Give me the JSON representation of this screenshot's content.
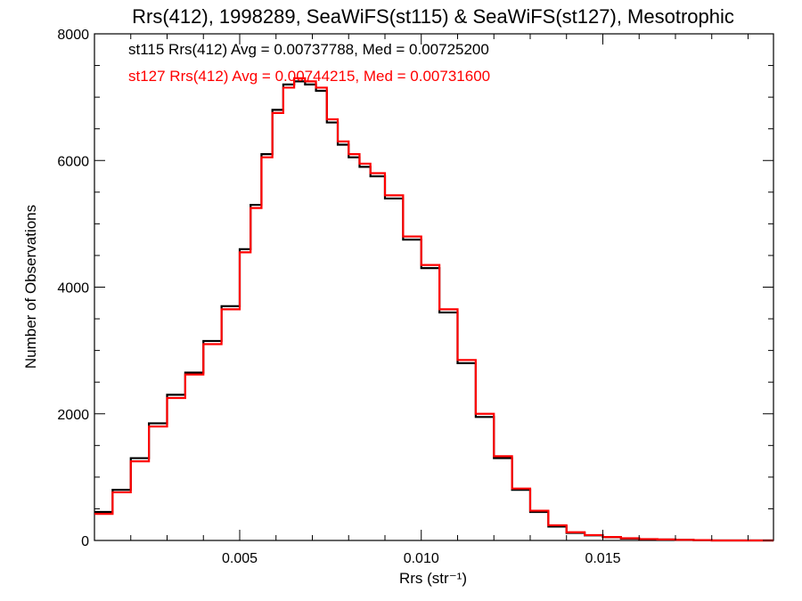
{
  "chart_data": {
    "type": "line",
    "title": "Rrs(412), 1998289, SeaWiFS(st115) & SeaWiFS(st127), Mesotrophic",
    "xlabel": "Rrs (str⁻¹)",
    "ylabel": "Number of Observations",
    "xlim": [
      0.001,
      0.0197
    ],
    "ylim": [
      0,
      8000
    ],
    "x_ticks": [
      0.005,
      0.01,
      0.015
    ],
    "x_tick_labels": [
      "0.005",
      "0.010",
      "0.015"
    ],
    "y_ticks": [
      0,
      2000,
      4000,
      6000,
      8000
    ],
    "y_tick_labels": [
      "0",
      "2000",
      "4000",
      "6000",
      "8000"
    ],
    "grid": false,
    "annotations": [
      {
        "text": "st115 Rrs(412) Avg = 0.00737788, Med = 0.00725200",
        "color": "#000000"
      },
      {
        "text": "st127 Rrs(412) Avg = 0.00744215, Med = 0.00731600",
        "color": "#ff0000"
      }
    ],
    "series": [
      {
        "name": "st115",
        "color": "#000000",
        "x": [
          0.001,
          0.0015,
          0.002,
          0.0025,
          0.003,
          0.0035,
          0.004,
          0.0045,
          0.005,
          0.0053,
          0.0056,
          0.0059,
          0.0062,
          0.0065,
          0.0068,
          0.0071,
          0.0074,
          0.0077,
          0.008,
          0.0083,
          0.0086,
          0.009,
          0.0095,
          0.01,
          0.0105,
          0.011,
          0.0115,
          0.012,
          0.0125,
          0.013,
          0.0135,
          0.014,
          0.0145,
          0.015,
          0.0155,
          0.016,
          0.0165,
          0.017,
          0.0175,
          0.018,
          0.0185,
          0.019,
          0.0197
        ],
        "y": [
          450,
          800,
          1300,
          1850,
          2300,
          2650,
          3150,
          3700,
          4600,
          5300,
          6100,
          6800,
          7200,
          7250,
          7200,
          7100,
          6600,
          6250,
          6050,
          5900,
          5750,
          5400,
          4750,
          4300,
          3600,
          2800,
          1950,
          1300,
          800,
          450,
          220,
          120,
          80,
          50,
          30,
          20,
          15,
          10,
          5,
          0,
          0,
          0,
          0
        ]
      },
      {
        "name": "st127",
        "color": "#ff0000",
        "x": [
          0.001,
          0.0015,
          0.002,
          0.0025,
          0.003,
          0.0035,
          0.004,
          0.0045,
          0.005,
          0.0053,
          0.0056,
          0.0059,
          0.0062,
          0.0065,
          0.0068,
          0.0071,
          0.0074,
          0.0077,
          0.008,
          0.0083,
          0.0086,
          0.009,
          0.0095,
          0.01,
          0.0105,
          0.011,
          0.0115,
          0.012,
          0.0125,
          0.013,
          0.0135,
          0.014,
          0.0145,
          0.015,
          0.0155,
          0.016,
          0.0165,
          0.017,
          0.0175,
          0.018,
          0.0185,
          0.019,
          0.0197
        ],
        "y": [
          420,
          760,
          1250,
          1800,
          2250,
          2620,
          3100,
          3650,
          4550,
          5250,
          6050,
          6750,
          7150,
          7300,
          7250,
          7150,
          6650,
          6300,
          6100,
          5950,
          5800,
          5450,
          4800,
          4350,
          3650,
          2850,
          2000,
          1330,
          820,
          470,
          240,
          130,
          85,
          55,
          35,
          22,
          16,
          10,
          6,
          0,
          0,
          0,
          0
        ]
      }
    ]
  }
}
